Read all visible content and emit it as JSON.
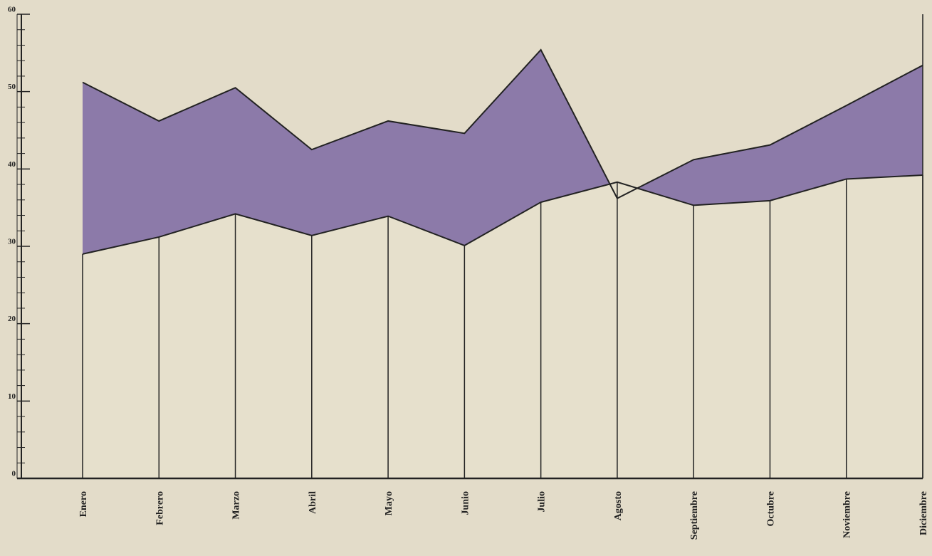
{
  "chart_data": {
    "type": "line",
    "categories": [
      "Enero",
      "Febrero",
      "Marzo",
      "Abril",
      "Mayo",
      "Junio",
      "Julio",
      "Agosto",
      "Septiembre",
      "Octubre",
      "Noviembre",
      "Diciembre"
    ],
    "series": [
      {
        "color": "#8c7aa9",
        "values": [
          51.2,
          46.2,
          50.5,
          42.5,
          46.2,
          44.6,
          55.4,
          36.2,
          41.2,
          43.1,
          48.2,
          53.4
        ]
      },
      {
        "color": "#e6e0cc",
        "values": [
          29.0,
          31.2,
          34.2,
          31.4,
          33.9,
          30.1,
          35.7,
          38.3,
          35.3,
          35.9,
          38.7,
          39.2
        ]
      }
    ],
    "ylim": [
      0,
      60
    ],
    "yticks": [
      0,
      10,
      20,
      30,
      40,
      50,
      60
    ]
  }
}
